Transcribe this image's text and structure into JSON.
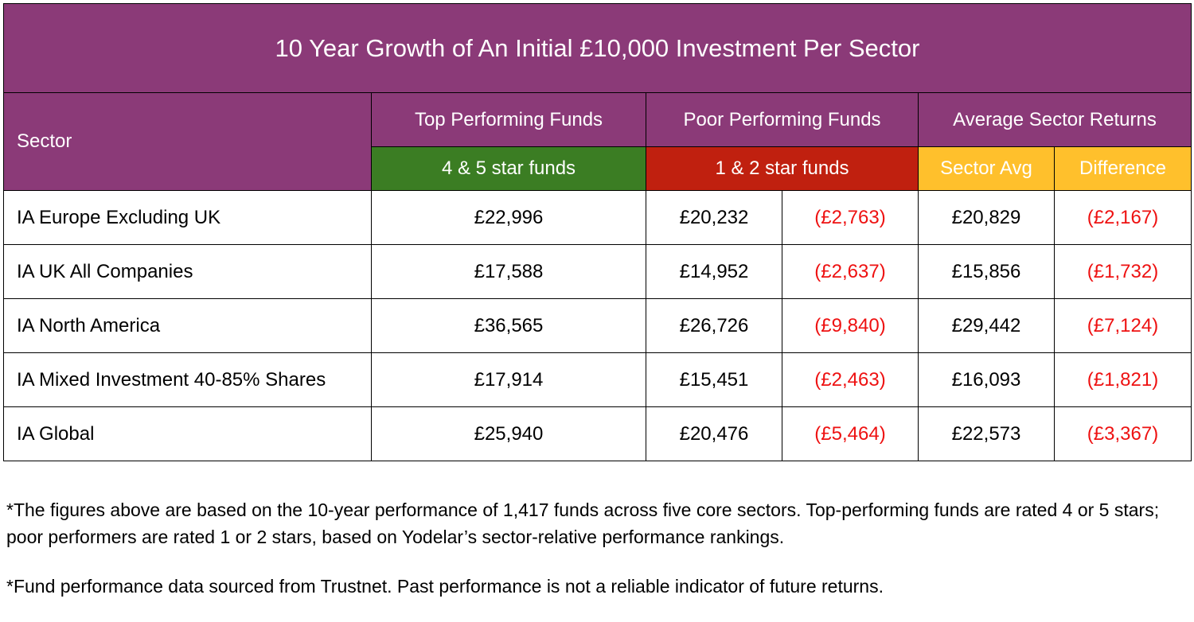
{
  "title": "10 Year Growth of An Initial £10,000 Investment Per Sector",
  "headers": {
    "sector": "Sector",
    "top": "Top Performing Funds",
    "poor": "Poor Performing Funds",
    "average": "Average Sector Returns",
    "top_sub": "4 & 5 star funds",
    "poor_sub": "1 & 2 star funds",
    "avg_sub": "Sector Avg",
    "diff_sub": "Difference"
  },
  "colors": {
    "header_purple": "#8b3a78",
    "top_green": "#3b7d23",
    "poor_red": "#c0200f",
    "avg_amber": "#ffc02c",
    "negative_text": "#ee1111"
  },
  "rows": [
    {
      "sector": "IA Europe Excluding UK",
      "top": "£22,996",
      "poor": "£20,232",
      "poor_diff": "(£2,763)",
      "avg": "£20,829",
      "avg_diff": "(£2,167)"
    },
    {
      "sector": "IA UK All Companies",
      "top": "£17,588",
      "poor": "£14,952",
      "poor_diff": "(£2,637)",
      "avg": "£15,856",
      "avg_diff": "(£1,732)"
    },
    {
      "sector": "IA North America",
      "top": "£36,565",
      "poor": "£26,726",
      "poor_diff": "(£9,840)",
      "avg": "£29,442",
      "avg_diff": "(£7,124)"
    },
    {
      "sector": "IA Mixed Investment 40-85% Shares",
      "top": "£17,914",
      "poor": "£15,451",
      "poor_diff": "(£2,463)",
      "avg": "£16,093",
      "avg_diff": "(£1,821)"
    },
    {
      "sector": "IA Global",
      "top": "£25,940",
      "poor": "£20,476",
      "poor_diff": "(£5,464)",
      "avg": "£22,573",
      "avg_diff": "(£3,367)"
    }
  ],
  "notes": [
    "*The figures above are based on the 10-year performance of 1,417 funds across five core sectors. Top-performing funds are rated 4 or 5 stars; poor performers are rated 1 or 2 stars, based on Yodelar’s sector-relative performance rankings.",
    "*Fund performance data sourced from Trustnet. Past performance is not a reliable indicator of future returns."
  ]
}
